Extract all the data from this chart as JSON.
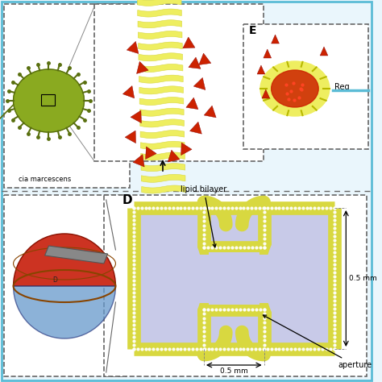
{
  "bg_color": "#eaf6fc",
  "outer_border_color": "#5bbcd6",
  "dashed_color": "#666666",
  "white": "#ffffff",
  "bilayer_fill": "#c8cae8",
  "yellow_outer": "#d8d840",
  "yellow_inner": "#eeee60",
  "yellow_dark": "#b8b800",
  "red_tri": "#cc2200",
  "green_bact": "#8aaa20",
  "green_dark": "#5a7010",
  "label_bacteria": "cia marcescens",
  "label_E": "E",
  "label_D": "D",
  "label_lipid": "lipid bilayer",
  "label_aperture": "aperture",
  "label_05h": "0.5 mm",
  "label_05w": "0.5 mm",
  "label_Reg": "Reg"
}
